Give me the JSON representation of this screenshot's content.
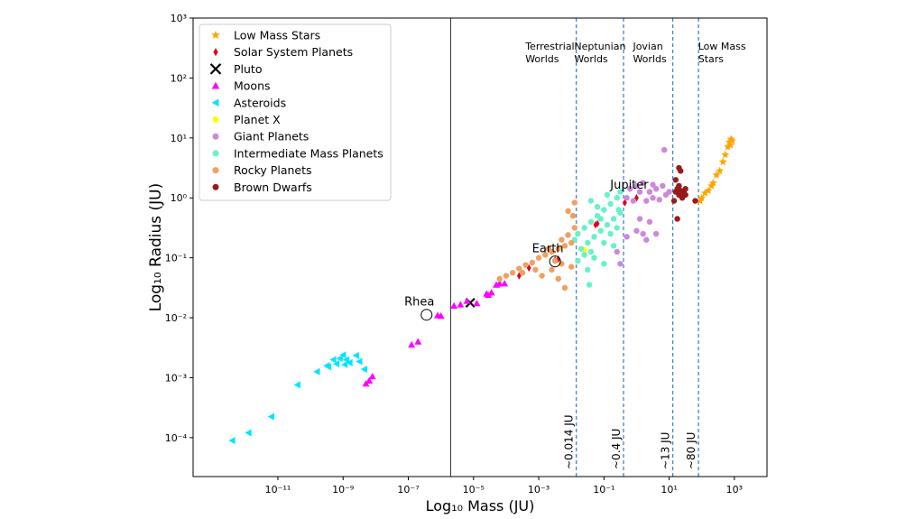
{
  "chart_data": {
    "type": "scatter",
    "xlabel": "Log₁₀ Mass (JU)",
    "ylabel": "Log₁₀ Radius (JU)",
    "xscale": "log",
    "yscale": "log",
    "xlim_log10": [
      -13.6,
      4.0
    ],
    "ylim_log10": [
      -4.65,
      3.0
    ],
    "x_ticks": [
      {
        "label": "10⁻¹¹",
        "value_log10": -11
      },
      {
        "label": "10⁻⁹",
        "value_log10": -9
      },
      {
        "label": "10⁻⁷",
        "value_log10": -7
      },
      {
        "label": "10⁻⁵",
        "value_log10": -5
      },
      {
        "label": "10⁻³",
        "value_log10": -3
      },
      {
        "label": "10⁻¹",
        "value_log10": -1
      },
      {
        "label": "10¹",
        "value_log10": 1
      },
      {
        "label": "10³",
        "value_log10": 3
      }
    ],
    "y_ticks": [
      {
        "label": "10⁻⁴",
        "value_log10": -4
      },
      {
        "label": "10⁻³",
        "value_log10": -3
      },
      {
        "label": "10⁻²",
        "value_log10": -2
      },
      {
        "label": "10⁻¹",
        "value_log10": -1
      },
      {
        "label": "10⁰",
        "value_log10": 0
      },
      {
        "label": "10¹",
        "value_log10": 1
      },
      {
        "label": "10²",
        "value_log10": 2
      },
      {
        "label": "10³",
        "value_log10": 3
      }
    ],
    "grid": false,
    "legend_position": "top-left",
    "region_boundaries": [
      {
        "mass_log10": -5.7,
        "style": "solid",
        "label": ""
      },
      {
        "mass_log10": -1.85,
        "style": "dashed",
        "label": "~0.014 JU"
      },
      {
        "mass_log10": -0.4,
        "style": "dashed",
        "label": "~0.4 JU"
      },
      {
        "mass_log10": 1.11,
        "style": "dashed",
        "label": "~13 JU"
      },
      {
        "mass_log10": 1.9,
        "style": "dashed",
        "label": "~80 JU"
      }
    ],
    "region_labels": [
      {
        "text": [
          "Terrestrial",
          "Worlds"
        ],
        "mass_log10": -3.3
      },
      {
        "text": [
          "Neptunian",
          "Worlds"
        ],
        "mass_log10": -1.8
      },
      {
        "text": [
          "Jovian",
          "Worlds"
        ],
        "mass_log10": 0.0
      },
      {
        "text": [
          "Low Mass",
          "Stars"
        ],
        "mass_log10": 2.0
      }
    ],
    "annotations": [
      {
        "text": "Rhea",
        "x_log10": -6.44,
        "y_log10": -1.95,
        "circled": true
      },
      {
        "text": "Earth",
        "x_log10": -2.5,
        "y_log10": -1.06,
        "circled": true
      },
      {
        "text": "Jupiter",
        "x_log10": 0.0,
        "y_log10": 0.0,
        "circled": false
      }
    ],
    "series": [
      {
        "name": "Low Mass Stars",
        "marker": "star",
        "color": "#FFA500",
        "points": [
          [
            1.95,
            -0.05
          ],
          [
            2.0,
            0.0
          ],
          [
            2.1,
            0.08
          ],
          [
            2.2,
            0.12
          ],
          [
            2.3,
            0.2
          ],
          [
            2.35,
            0.25
          ],
          [
            2.45,
            0.38
          ],
          [
            2.55,
            0.45
          ],
          [
            2.65,
            0.6
          ],
          [
            2.72,
            0.72
          ],
          [
            2.8,
            0.85
          ],
          [
            2.85,
            0.93
          ],
          [
            2.9,
            0.98
          ],
          [
            2.93,
            0.95
          ],
          [
            2.88,
            0.88
          ]
        ]
      },
      {
        "name": "Solar System Planets",
        "marker": "diamond",
        "color": "#E0001A",
        "points": [
          [
            -3.6,
            -1.3
          ],
          [
            -3.3,
            -1.17
          ],
          [
            -2.5,
            -1.04
          ],
          [
            -2.4,
            -1.02
          ],
          [
            -1.26,
            -0.45
          ],
          [
            -1.2,
            -0.43
          ],
          [
            -0.36,
            -0.08
          ],
          [
            0.0,
            0.0
          ]
        ]
      },
      {
        "name": "Pluto",
        "marker": "x",
        "color": "#000000",
        "points": [
          [
            -5.1,
            -1.75
          ]
        ]
      },
      {
        "name": "Moons",
        "marker": "triangle-up",
        "color": "#FF00FF",
        "points": [
          [
            -6.7,
            -2.4
          ],
          [
            -6.9,
            -2.45
          ],
          [
            -6.1,
            -1.96
          ],
          [
            -6.0,
            -1.97
          ],
          [
            -5.6,
            -1.8
          ],
          [
            -5.4,
            -1.78
          ],
          [
            -5.2,
            -1.72
          ],
          [
            -4.9,
            -1.76
          ],
          [
            -4.6,
            -1.6
          ],
          [
            -4.45,
            -1.58
          ],
          [
            -4.3,
            -1.45
          ],
          [
            -4.2,
            -1.43
          ],
          [
            -4.05,
            -1.43
          ],
          [
            -8.2,
            -3.05
          ],
          [
            -8.1,
            -2.98
          ],
          [
            -8.3,
            -3.1
          ],
          [
            -4.55,
            -1.62
          ]
        ]
      },
      {
        "name": "Asteroids",
        "marker": "triangle-left",
        "color": "#00E5FF",
        "points": [
          [
            -12.4,
            -4.05
          ],
          [
            -11.9,
            -3.92
          ],
          [
            -11.2,
            -3.65
          ],
          [
            -10.4,
            -3.12
          ],
          [
            -9.8,
            -2.9
          ],
          [
            -9.5,
            -2.8
          ],
          [
            -9.45,
            -2.82
          ],
          [
            -9.2,
            -2.77
          ],
          [
            -9.0,
            -2.62
          ],
          [
            -8.9,
            -2.7
          ],
          [
            -8.8,
            -2.75
          ],
          [
            -8.6,
            -2.63
          ],
          [
            -8.5,
            -2.73
          ],
          [
            -9.3,
            -2.7
          ],
          [
            -8.35,
            -2.86
          ],
          [
            -9.1,
            -2.68
          ],
          [
            -8.95,
            -2.78
          ]
        ]
      },
      {
        "name": "Planet X",
        "marker": "circle",
        "color": "#FFFF00",
        "points": [
          [
            -1.6,
            -0.87
          ]
        ]
      },
      {
        "name": "Giant Planets",
        "marker": "circle",
        "color": "#CC88DD",
        "points": [
          [
            -0.2,
            0.15
          ],
          [
            0.0,
            0.2
          ],
          [
            0.2,
            0.25
          ],
          [
            0.4,
            0.1
          ],
          [
            0.6,
            0.15
          ],
          [
            0.8,
            0.2
          ],
          [
            0.9,
            0.05
          ],
          [
            1.0,
            0.1
          ],
          [
            -0.1,
            -0.05
          ],
          [
            0.3,
            -0.05
          ],
          [
            0.5,
            0.0
          ],
          [
            0.7,
            -0.03
          ],
          [
            0.1,
            0.1
          ],
          [
            -0.3,
            0.0
          ],
          [
            0.5,
            0.22
          ],
          [
            0.85,
            0.8
          ],
          [
            0.0,
            -0.55
          ],
          [
            0.2,
            -0.6
          ],
          [
            0.4,
            -0.4
          ],
          [
            -0.3,
            -0.65
          ],
          [
            0.6,
            -0.6
          ],
          [
            -0.5,
            -1.1
          ],
          [
            -0.6,
            -0.9
          ],
          [
            0.3,
            -0.7
          ],
          [
            0.1,
            -0.35
          ]
        ]
      },
      {
        "name": "Intermediate Mass Planets",
        "marker": "circle",
        "color": "#66F2C8",
        "points": [
          [
            -1.8,
            -0.6
          ],
          [
            -1.6,
            -0.5
          ],
          [
            -1.4,
            -0.4
          ],
          [
            -1.2,
            -0.3
          ],
          [
            -1.0,
            -0.2
          ],
          [
            -0.8,
            -0.1
          ],
          [
            -0.6,
            0.0
          ],
          [
            -0.5,
            0.1
          ],
          [
            -1.7,
            -0.85
          ],
          [
            -1.5,
            -0.75
          ],
          [
            -1.3,
            -0.65
          ],
          [
            -1.1,
            -0.55
          ],
          [
            -0.9,
            -0.45
          ],
          [
            -0.7,
            -0.35
          ],
          [
            -0.55,
            -0.2
          ],
          [
            -1.8,
            -1.05
          ],
          [
            -1.6,
            -0.95
          ],
          [
            -1.4,
            -0.9
          ],
          [
            -1.0,
            -0.75
          ],
          [
            -0.8,
            -0.6
          ],
          [
            -1.2,
            -0.15
          ],
          [
            -1.4,
            -0.05
          ],
          [
            -0.9,
            0.05
          ],
          [
            -0.7,
            -0.8
          ],
          [
            -1.5,
            -1.2
          ],
          [
            -1.0,
            -1.1
          ],
          [
            -1.3,
            -1.0
          ],
          [
            -0.6,
            -0.5
          ],
          [
            -1.9,
            -0.7
          ],
          [
            -1.1,
            -0.35
          ],
          [
            -1.45,
            -1.45
          ],
          [
            -0.5,
            -0.25
          ]
        ]
      },
      {
        "name": "Rocky Planets",
        "marker": "circle",
        "color": "#F0A060",
        "points": [
          [
            -4.0,
            -1.3
          ],
          [
            -3.8,
            -1.25
          ],
          [
            -3.6,
            -1.18
          ],
          [
            -3.4,
            -1.12
          ],
          [
            -3.2,
            -1.08
          ],
          [
            -3.0,
            -1.0
          ],
          [
            -2.8,
            -0.95
          ],
          [
            -2.6,
            -0.9
          ],
          [
            -2.4,
            -0.85
          ],
          [
            -2.2,
            -0.8
          ],
          [
            -2.0,
            -0.75
          ],
          [
            -1.9,
            -0.5
          ],
          [
            -2.1,
            -0.62
          ],
          [
            -2.3,
            -0.7
          ],
          [
            -2.5,
            -1.05
          ],
          [
            -2.3,
            -1.1
          ],
          [
            -2.0,
            -1.15
          ],
          [
            -2.6,
            -1.2
          ],
          [
            -2.4,
            -1.35
          ],
          [
            -2.9,
            -1.3
          ],
          [
            -3.5,
            -1.25
          ],
          [
            -1.95,
            -0.3
          ],
          [
            -1.9,
            -0.08
          ],
          [
            -2.1,
            -0.22
          ],
          [
            -2.2,
            -1.5
          ],
          [
            -4.2,
            -1.35
          ],
          [
            -3.1,
            -1.2
          ],
          [
            -2.7,
            -0.85
          ]
        ]
      },
      {
        "name": "Brown Dwarfs",
        "marker": "circle",
        "color": "#991A1A",
        "points": [
          [
            1.2,
            0.1
          ],
          [
            1.3,
            0.05
          ],
          [
            1.35,
            0.12
          ],
          [
            1.4,
            0.08
          ],
          [
            1.25,
            0.15
          ],
          [
            1.45,
            0.1
          ],
          [
            1.3,
            0.2
          ],
          [
            1.5,
            0.05
          ],
          [
            1.2,
            0.3
          ],
          [
            1.3,
            0.5
          ],
          [
            1.35,
            0.45
          ],
          [
            1.15,
            -0.05
          ],
          [
            1.4,
            0.0
          ],
          [
            1.25,
            -0.35
          ],
          [
            1.8,
            -0.05
          ],
          [
            1.5,
            0.15
          ]
        ]
      }
    ]
  }
}
